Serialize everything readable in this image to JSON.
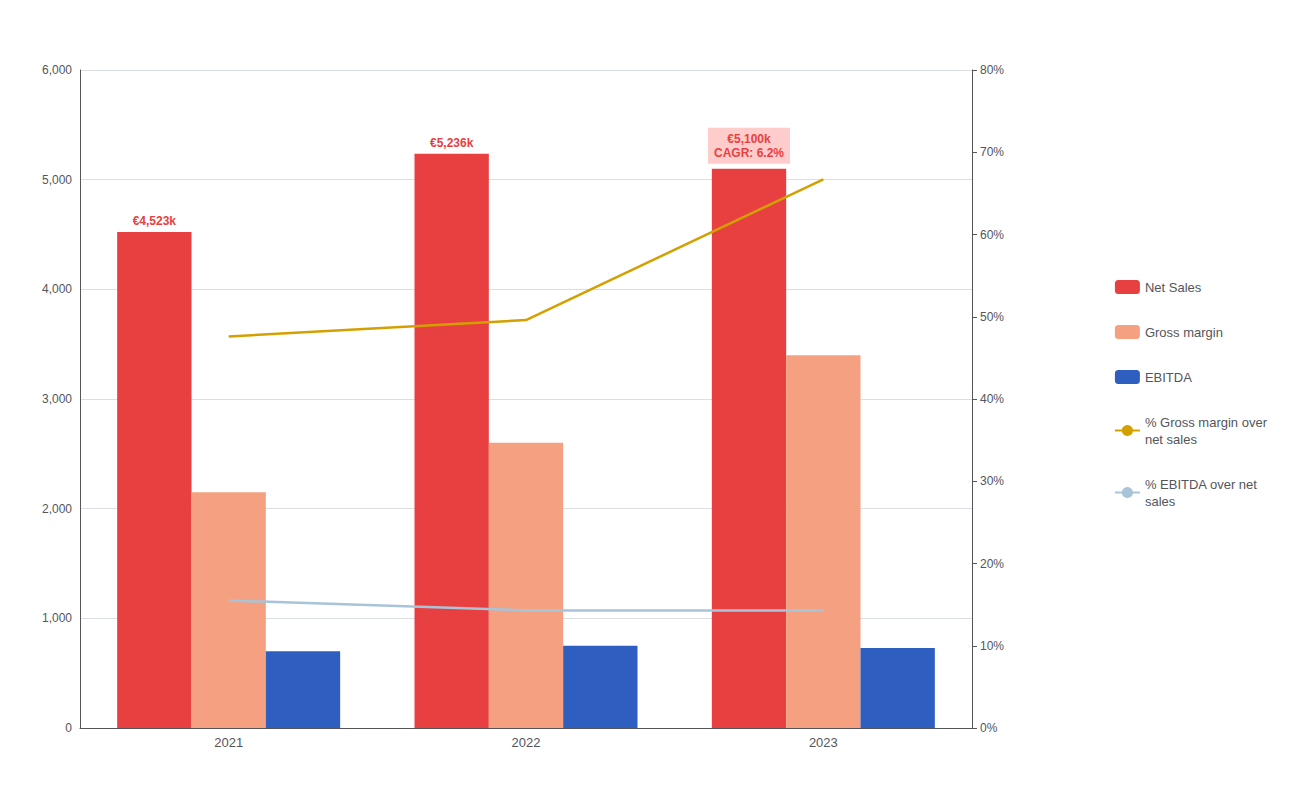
{
  "chart_data": {
    "type": "bar",
    "categories": [
      "2021",
      "2022",
      "2023"
    ],
    "series": [
      {
        "name": "Net Sales",
        "type": "bar",
        "color": "#E84040",
        "values": [
          4523,
          5236,
          5100
        ],
        "data_labels": true,
        "value_labels": [
          "€4,523k",
          "€5,236k",
          "€5,100k"
        ]
      },
      {
        "name": "Gross margin",
        "type": "bar",
        "color": "#F5A080",
        "values": [
          2150,
          2600,
          3400
        ]
      },
      {
        "name": "EBITDA",
        "type": "bar",
        "color": "#2E5EBF",
        "values": [
          700,
          750,
          730
        ]
      },
      {
        "name": "% Gross margin over\nnet sales",
        "type": "line",
        "color": "#D4A000",
        "axis": "y2",
        "values": [
          0.476,
          0.496,
          0.667
        ]
      },
      {
        "name": "% EBITDA over net\nsales",
        "type": "line",
        "color": "#A8C4D8",
        "axis": "y2",
        "values": [
          0.155,
          0.143,
          0.143
        ]
      }
    ],
    "ylim": [
      0,
      6000
    ],
    "yticks": [
      0,
      {
        "value": 1000,
        "label": "1,000"
      },
      {
        "value": 2000,
        "label": "2,000"
      },
      {
        "value": 3000,
        "label": "3,000"
      },
      {
        "value": 4000,
        "label": "4,000"
      },
      {
        "value": 5000,
        "label": "5,000"
      },
      {
        "value": 6000,
        "label": "6,000"
      }
    ],
    "y2lim": [
      0.0,
      0.8
    ],
    "y2ticks": [
      {
        "value": 0.0,
        "label": "0%"
      },
      {
        "value": 0.1,
        "label": "10%"
      },
      {
        "value": 0.2,
        "label": "20%"
      },
      {
        "value": 0.3,
        "label": "30%"
      },
      {
        "value": 0.4,
        "label": "40%"
      },
      {
        "value": 0.5,
        "label": "50%"
      },
      {
        "value": 0.6,
        "label": "60%"
      },
      {
        "value": 0.7,
        "label": "70%"
      },
      {
        "value": 0.8,
        "label": "80%"
      }
    ],
    "grid": true,
    "legend": "right",
    "annotations": [
      {
        "text": "CAGR: 6.2%",
        "category": "2023",
        "series": "Net Sales"
      }
    ]
  }
}
